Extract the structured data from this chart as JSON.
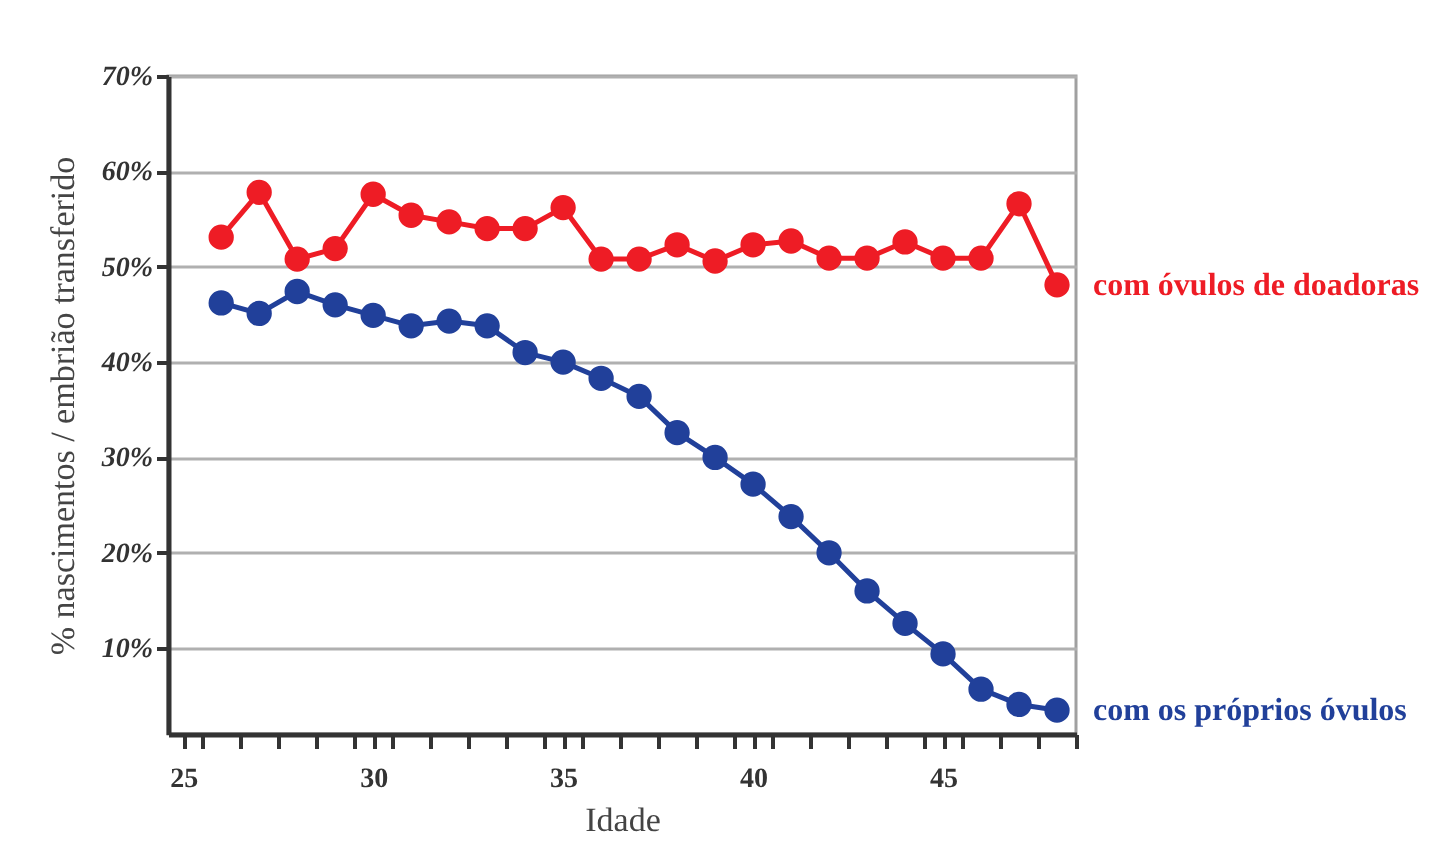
{
  "chart_data": {
    "type": "line",
    "xlabel": "Idade",
    "ylabel": "% nascimentos / embrião transferido",
    "x": [
      26,
      27,
      28,
      29,
      30,
      31,
      32,
      33,
      34,
      35,
      36,
      37,
      38,
      39,
      40,
      41,
      42,
      43,
      44,
      45,
      46,
      47,
      48
    ],
    "series": [
      {
        "name": "com óvulos de doadoras",
        "color": "#ee1c25",
        "values": [
          53.1,
          57.8,
          50.8,
          51.9,
          57.6,
          55.4,
          54.7,
          54.0,
          54.0,
          56.2,
          50.8,
          50.8,
          52.3,
          50.6,
          52.3,
          52.7,
          50.9,
          50.9,
          52.6,
          50.9,
          50.9,
          56.6,
          48.1
        ]
      },
      {
        "name": "com os próprios óvulos",
        "color": "#21409a",
        "values": [
          46.2,
          45.1,
          47.4,
          46.0,
          44.9,
          43.8,
          44.3,
          43.8,
          41.0,
          40.0,
          38.3,
          36.4,
          32.6,
          30.0,
          27.2,
          23.8,
          20.0,
          16.0,
          12.6,
          9.4,
          5.7,
          4.1,
          3.5
        ]
      }
    ],
    "xlim": [
      24.6,
      48.5
    ],
    "xticks": [
      25,
      30,
      35,
      40,
      45,
      {
        "value": 25.5,
        "label": null
      },
      {
        "value": 26.5,
        "label": null
      },
      {
        "value": 27.5,
        "label": null
      },
      {
        "value": 28.5,
        "label": null
      },
      {
        "value": 29.5,
        "label": null
      },
      {
        "value": 30.5,
        "label": null
      },
      {
        "value": 31.5,
        "label": null
      },
      {
        "value": 32.5,
        "label": null
      },
      {
        "value": 33.5,
        "label": null
      },
      {
        "value": 34.5,
        "label": null
      },
      {
        "value": 35.5,
        "label": null
      },
      {
        "value": 36.5,
        "label": null
      },
      {
        "value": 37.5,
        "label": null
      },
      {
        "value": 38.5,
        "label": null
      },
      {
        "value": 39.5,
        "label": null
      },
      {
        "value": 40.5,
        "label": null
      },
      {
        "value": 41.5,
        "label": null
      },
      {
        "value": 42.5,
        "label": null
      },
      {
        "value": 43.5,
        "label": null
      },
      {
        "value": 44.5,
        "label": null
      },
      {
        "value": 45.5,
        "label": null
      },
      {
        "value": 46.5,
        "label": null
      },
      {
        "value": 47.5,
        "label": null
      },
      {
        "value": 48.5,
        "label": null
      }
    ],
    "ylim": [
      1,
      70
    ],
    "yticks": [
      {
        "value": 10,
        "label": "10%"
      },
      {
        "value": 20,
        "label": "20%"
      },
      {
        "value": 30,
        "label": "30%"
      },
      {
        "value": 40,
        "label": "40%"
      },
      {
        "value": 50,
        "label": "50%"
      },
      {
        "value": 60,
        "label": "60%"
      },
      {
        "value": 70,
        "label": "70%"
      }
    ],
    "grid": "y",
    "marker": "circle",
    "line_style": "solid",
    "legend": false
  }
}
